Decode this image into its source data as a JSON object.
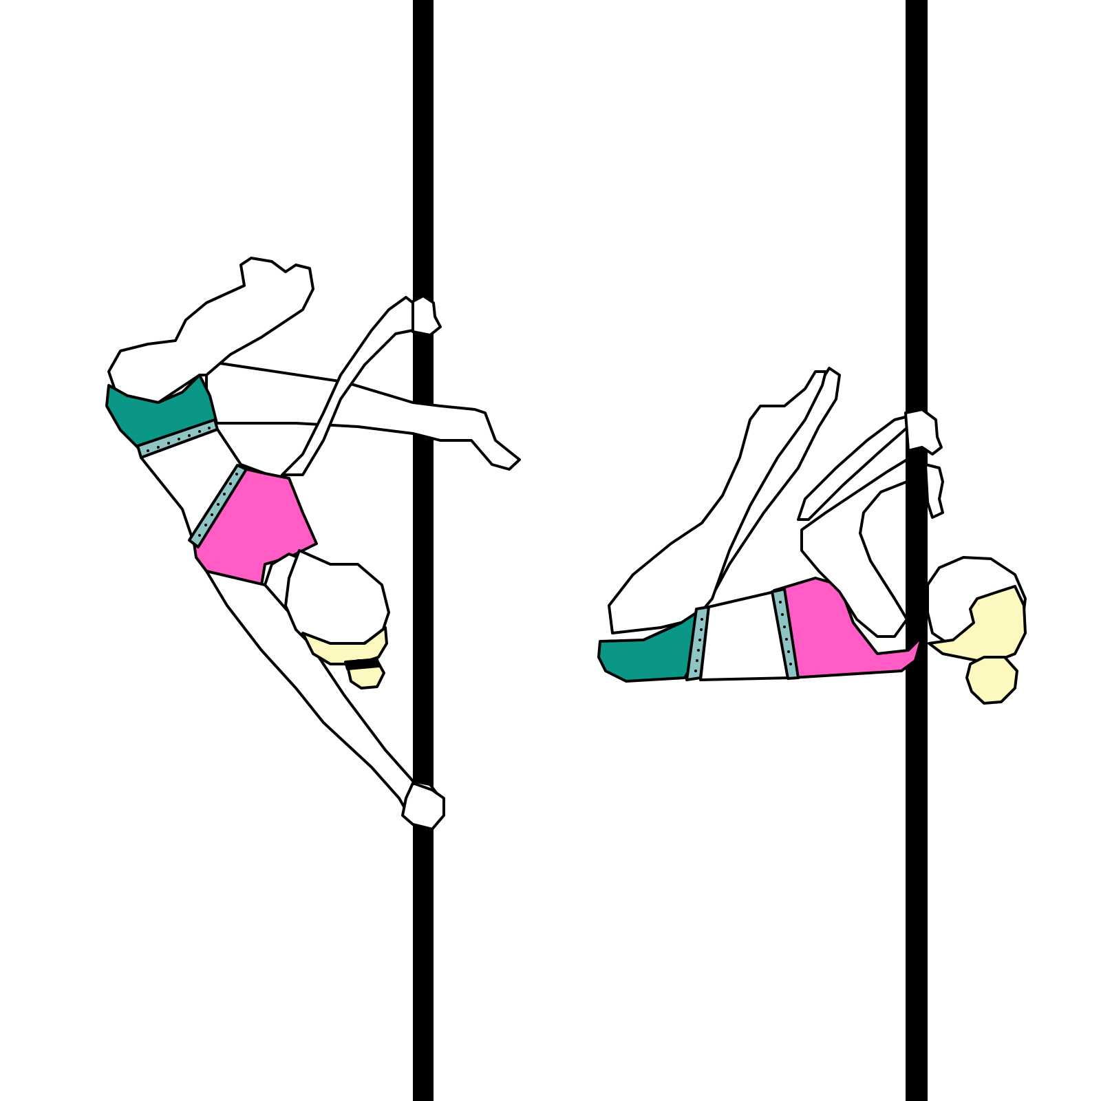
{
  "illustration": {
    "panels": [
      {
        "id": "left-pose",
        "pole": "left-pole"
      },
      {
        "id": "right-pose",
        "pole": "right-pole"
      }
    ],
    "colors": {
      "background": "#ffffff",
      "pole": "#000000",
      "skin": "#ffffff",
      "top": "#ff5cc6",
      "bottoms": "#0a9785",
      "trim": "#8ec4c4",
      "hair": "#fdf8c0",
      "outline": "#000000"
    }
  }
}
